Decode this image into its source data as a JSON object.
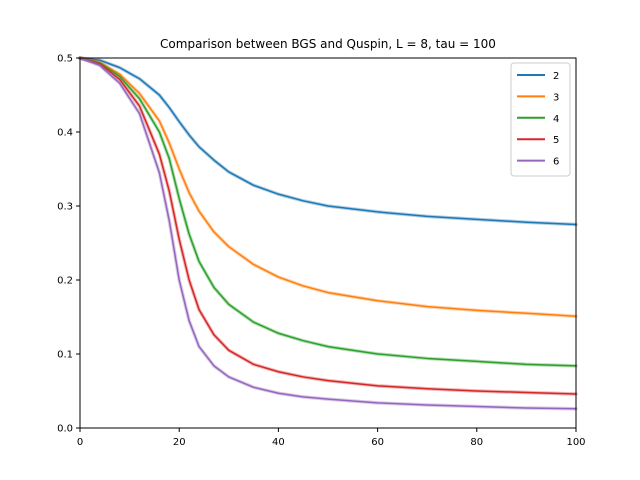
{
  "chart_data": {
    "type": "line",
    "title": "Comparison between BGS and Quspin, L = 8, tau = 100",
    "xlabel": "",
    "ylabel": "",
    "xlim": [
      0,
      100
    ],
    "ylim": [
      0,
      0.5
    ],
    "xticks": [
      0,
      20,
      40,
      60,
      80,
      100
    ],
    "yticks": [
      0.0,
      0.1,
      0.2,
      0.3,
      0.4,
      0.5
    ],
    "xtick_labels": [
      "0",
      "20",
      "40",
      "60",
      "80",
      "100"
    ],
    "ytick_labels": [
      "0.0",
      "0.1",
      "0.2",
      "0.3",
      "0.4",
      "0.5"
    ],
    "grid": false,
    "legend_position": "top-right",
    "x": [
      0,
      4,
      8,
      12,
      16,
      18,
      20,
      22,
      24,
      27,
      30,
      35,
      40,
      45,
      50,
      60,
      70,
      80,
      90,
      100
    ],
    "series": [
      {
        "name": "2",
        "color": "#1f77b4",
        "values": [
          0.5,
          0.497,
          0.487,
          0.472,
          0.45,
          0.433,
          0.414,
          0.396,
          0.38,
          0.362,
          0.346,
          0.328,
          0.316,
          0.307,
          0.3,
          0.292,
          0.286,
          0.282,
          0.278,
          0.275
        ]
      },
      {
        "name": "3",
        "color": "#ff7f0e",
        "values": [
          0.5,
          0.494,
          0.478,
          0.452,
          0.415,
          0.385,
          0.35,
          0.318,
          0.293,
          0.265,
          0.245,
          0.221,
          0.204,
          0.192,
          0.183,
          0.172,
          0.164,
          0.159,
          0.155,
          0.151
        ]
      },
      {
        "name": "4",
        "color": "#2ca02c",
        "values": [
          0.5,
          0.493,
          0.475,
          0.445,
          0.4,
          0.364,
          0.31,
          0.262,
          0.225,
          0.19,
          0.167,
          0.143,
          0.128,
          0.118,
          0.11,
          0.1,
          0.094,
          0.09,
          0.086,
          0.084
        ]
      },
      {
        "name": "5",
        "color": "#d62728",
        "values": [
          0.5,
          0.492,
          0.471,
          0.435,
          0.37,
          0.32,
          0.255,
          0.2,
          0.16,
          0.126,
          0.105,
          0.086,
          0.076,
          0.069,
          0.064,
          0.057,
          0.053,
          0.05,
          0.048,
          0.046
        ]
      },
      {
        "name": "6",
        "color": "#9467bd",
        "values": [
          0.5,
          0.49,
          0.466,
          0.425,
          0.345,
          0.28,
          0.2,
          0.145,
          0.11,
          0.084,
          0.069,
          0.055,
          0.047,
          0.042,
          0.039,
          0.034,
          0.031,
          0.029,
          0.027,
          0.026
        ]
      }
    ]
  }
}
